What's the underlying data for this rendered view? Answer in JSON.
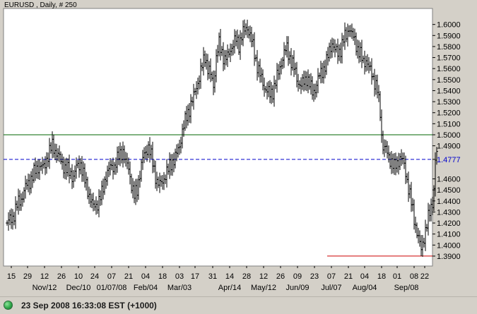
{
  "chart_title": "EURUSD , Daily, # 250",
  "status": {
    "text": "23 Sep 2008 16:33:08  EST (+1000)",
    "indicator": "green-dot"
  },
  "colors": {
    "bars": "#000000",
    "resistance": "#006600",
    "marker_line": "#0000cc",
    "support": "#cc0000",
    "background": "#ffffff",
    "panel": "#d4d0c8"
  },
  "chart_data": {
    "type": "ohlc",
    "title": "EURUSD , Daily, # 250",
    "ylim": [
      1.381,
      1.6145
    ],
    "y_ticks": [
      "1.6000",
      "1.5900",
      "1.5800",
      "1.5700",
      "1.5600",
      "1.5500",
      "1.5400",
      "1.5300",
      "1.5200",
      "1.5100",
      "1.5000",
      "1.4900",
      "1.4777",
      "1.4600",
      "1.4500",
      "1.4400",
      "1.4300",
      "1.4200",
      "1.4100",
      "1.4000",
      "1.3900"
    ],
    "x_tick_labels": [
      "15",
      "29",
      "12",
      "26",
      "10",
      "24",
      "07",
      "21",
      "04",
      "18",
      "03",
      "17",
      "31",
      "14",
      "28",
      "12",
      "26",
      "09",
      "23",
      "07",
      "21",
      "04",
      "18",
      "01",
      "08",
      "22"
    ],
    "x_month_labels": [
      "Nov/12",
      "Dec/10",
      "01/07/08",
      "Feb/04",
      "Mar/03",
      "Apr/14",
      "May/12",
      "Jun/09",
      "Jul/07",
      "Aug/04",
      "Sep/08"
    ],
    "horizontal_lines": [
      {
        "value": 1.5,
        "style": "solid",
        "color": "#006600"
      },
      {
        "value": 1.4777,
        "style": "dashed",
        "color": "#0000cc",
        "label": "1.4777"
      },
      {
        "value": 1.39,
        "style": "solid",
        "color": "#cc0000",
        "partial": "right"
      }
    ],
    "anchors": [
      [
        0,
        1.42
      ],
      [
        8,
        1.425
      ],
      [
        14,
        1.436
      ],
      [
        20,
        1.442
      ],
      [
        26,
        1.452
      ],
      [
        32,
        1.458
      ],
      [
        38,
        1.465
      ],
      [
        45,
        1.472
      ],
      [
        52,
        1.47
      ],
      [
        58,
        1.482
      ],
      [
        64,
        1.49
      ],
      [
        70,
        1.484
      ],
      [
        76,
        1.476
      ],
      [
        82,
        1.47
      ],
      [
        88,
        1.466
      ],
      [
        94,
        1.462
      ],
      [
        98,
        1.47
      ],
      [
        104,
        1.474
      ],
      [
        110,
        1.458
      ],
      [
        116,
        1.446
      ],
      [
        122,
        1.434
      ],
      [
        128,
        1.438
      ],
      [
        134,
        1.446
      ],
      [
        140,
        1.464
      ],
      [
        146,
        1.47
      ],
      [
        152,
        1.472
      ],
      [
        158,
        1.48
      ],
      [
        164,
        1.486
      ],
      [
        168,
        1.474
      ],
      [
        172,
        1.47
      ],
      [
        176,
        1.455
      ],
      [
        180,
        1.444
      ],
      [
        184,
        1.45
      ],
      [
        188,
        1.466
      ],
      [
        192,
        1.478
      ],
      [
        196,
        1.484
      ],
      [
        200,
        1.49
      ],
      [
        204,
        1.48
      ],
      [
        208,
        1.468
      ],
      [
        212,
        1.458
      ],
      [
        216,
        1.454
      ],
      [
        220,
        1.458
      ],
      [
        224,
        1.464
      ],
      [
        228,
        1.468
      ],
      [
        232,
        1.474
      ],
      [
        236,
        1.478
      ],
      [
        240,
        1.482
      ],
      [
        244,
        1.49
      ],
      [
        248,
        1.504
      ],
      [
        252,
        1.512
      ],
      [
        256,
        1.52
      ],
      [
        260,
        1.528
      ],
      [
        264,
        1.534
      ],
      [
        268,
        1.544
      ],
      [
        272,
        1.552
      ],
      [
        276,
        1.562
      ],
      [
        280,
        1.572
      ],
      [
        284,
        1.56
      ],
      [
        288,
        1.554
      ],
      [
        292,
        1.545
      ],
      [
        296,
        1.57
      ],
      [
        300,
        1.582
      ],
      [
        304,
        1.575
      ],
      [
        308,
        1.568
      ],
      [
        312,
        1.57
      ],
      [
        316,
        1.578
      ],
      [
        320,
        1.582
      ],
      [
        324,
        1.586
      ],
      [
        328,
        1.582
      ],
      [
        332,
        1.59
      ],
      [
        336,
        1.594
      ],
      [
        340,
        1.598
      ],
      [
        344,
        1.59
      ],
      [
        348,
        1.58
      ],
      [
        352,
        1.568
      ],
      [
        356,
        1.558
      ],
      [
        360,
        1.55
      ],
      [
        364,
        1.544
      ],
      [
        368,
        1.54
      ],
      [
        372,
        1.536
      ],
      [
        376,
        1.54
      ],
      [
        380,
        1.548
      ],
      [
        384,
        1.556
      ],
      [
        388,
        1.566
      ],
      [
        392,
        1.574
      ],
      [
        396,
        1.578
      ],
      [
        400,
        1.57
      ],
      [
        404,
        1.564
      ],
      [
        408,
        1.556
      ],
      [
        412,
        1.548
      ],
      [
        416,
        1.544
      ],
      [
        420,
        1.548
      ],
      [
        424,
        1.552
      ],
      [
        428,
        1.546
      ],
      [
        432,
        1.538
      ],
      [
        436,
        1.542
      ],
      [
        440,
        1.55
      ],
      [
        444,
        1.556
      ],
      [
        448,
        1.56
      ],
      [
        452,
        1.566
      ],
      [
        456,
        1.576
      ],
      [
        460,
        1.584
      ],
      [
        464,
        1.576
      ],
      [
        468,
        1.574
      ],
      [
        472,
        1.578
      ],
      [
        476,
        1.586
      ],
      [
        480,
        1.59
      ],
      [
        484,
        1.598
      ],
      [
        488,
        1.59
      ],
      [
        492,
        1.586
      ],
      [
        496,
        1.578
      ],
      [
        500,
        1.572
      ],
      [
        504,
        1.566
      ],
      [
        508,
        1.568
      ],
      [
        512,
        1.56
      ],
      [
        516,
        1.556
      ],
      [
        520,
        1.548
      ],
      [
        524,
        1.54
      ],
      [
        528,
        1.52
      ],
      [
        530,
        1.5
      ],
      [
        532,
        1.49
      ],
      [
        536,
        1.486
      ],
      [
        540,
        1.48
      ],
      [
        544,
        1.476
      ],
      [
        548,
        1.47
      ],
      [
        552,
        1.474
      ],
      [
        556,
        1.48
      ],
      [
        560,
        1.476
      ],
      [
        564,
        1.466
      ],
      [
        568,
        1.452
      ],
      [
        572,
        1.438
      ],
      [
        576,
        1.424
      ],
      [
        580,
        1.412
      ],
      [
        584,
        1.4
      ],
      [
        586,
        1.396
      ],
      [
        590,
        1.408
      ],
      [
        594,
        1.418
      ],
      [
        598,
        1.43
      ],
      [
        602,
        1.44
      ],
      [
        604,
        1.45
      ],
      [
        606,
        1.476
      ],
      [
        608,
        1.482
      ]
    ]
  }
}
